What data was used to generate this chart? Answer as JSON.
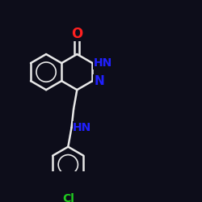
{
  "bg_color": "#0d0d1a",
  "bond_color": "#e8e8e8",
  "atom_colors": {
    "O": "#ff2020",
    "N": "#2020ff",
    "Cl": "#20cc20",
    "C": "#e8e8e8"
  },
  "bond_width": 1.8,
  "font_size_atom": 11
}
